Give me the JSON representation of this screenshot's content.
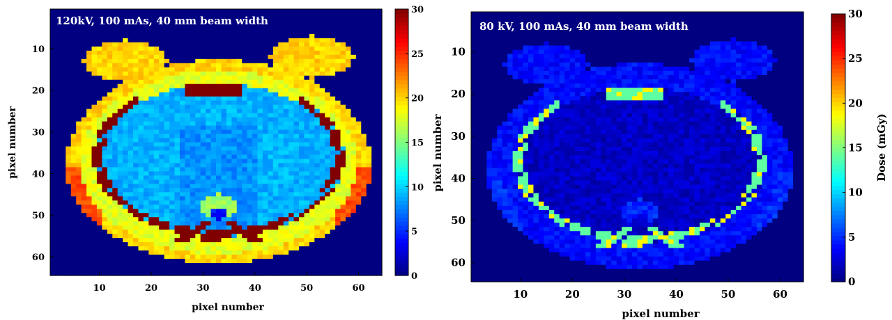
{
  "chart_data": [
    {
      "type": "heatmap",
      "title": "120kV, 100 mAs, 40 mm beam width",
      "xlabel": "pixel number",
      "ylabel": "pixel number",
      "xticks": [
        10,
        20,
        30,
        40,
        50,
        60
      ],
      "yticks": [
        10,
        20,
        30,
        40,
        50,
        60
      ],
      "xlim": [
        0.5,
        64.5
      ],
      "ylim": [
        0.5,
        64.5
      ],
      "grid_size": 64,
      "colorbar": {
        "ticks": [
          0,
          5,
          10,
          15,
          20,
          25,
          30
        ],
        "range": [
          0,
          30
        ],
        "label": "",
        "colormap": "jet"
      },
      "dose_levels": {
        "background": 0,
        "lung_interior": 9,
        "mediastinum": 8,
        "body_wall": 18,
        "outer_wall": 20,
        "lateral_hotspot": 24,
        "bone": 30,
        "spine_body": 16,
        "spine_canal": 4
      },
      "values_summary": "Elliptical chest phantom; lung/mediastinum ~8-10 mGy, outer body wall ~17-22 mGy, ribs/sternum/spine ~30 mGy (saturated), air 0 mGy"
    },
    {
      "type": "heatmap",
      "title": "80 kV, 100 mAs, 40 mm beam width",
      "xlabel": "pixel number",
      "ylabel": "pixel number",
      "xticks": [
        10,
        20,
        30,
        40,
        50,
        60
      ],
      "yticks": [
        10,
        20,
        30,
        40,
        50,
        60
      ],
      "xlim": [
        0.5,
        64.5
      ],
      "ylim": [
        0.5,
        64.5
      ],
      "grid_size": 64,
      "colorbar": {
        "ticks": [
          0,
          5,
          10,
          15,
          20,
          25,
          30
        ],
        "range": [
          0,
          30
        ],
        "label": "Dose (mGy)",
        "colormap": "jet"
      },
      "dose_levels": {
        "background": 0,
        "lung_interior": 2,
        "mediastinum": 2,
        "body_wall": 4,
        "outer_wall": 4,
        "lateral_hotspot": 5,
        "bone": 14,
        "bone_hot": 19,
        "spine_body": 5,
        "spine_canal": 3
      },
      "values_summary": "Same phantom at 80 kV; soft tissue ~2-5 mGy, bones ~10-20 mGy, air 0 mGy"
    }
  ]
}
